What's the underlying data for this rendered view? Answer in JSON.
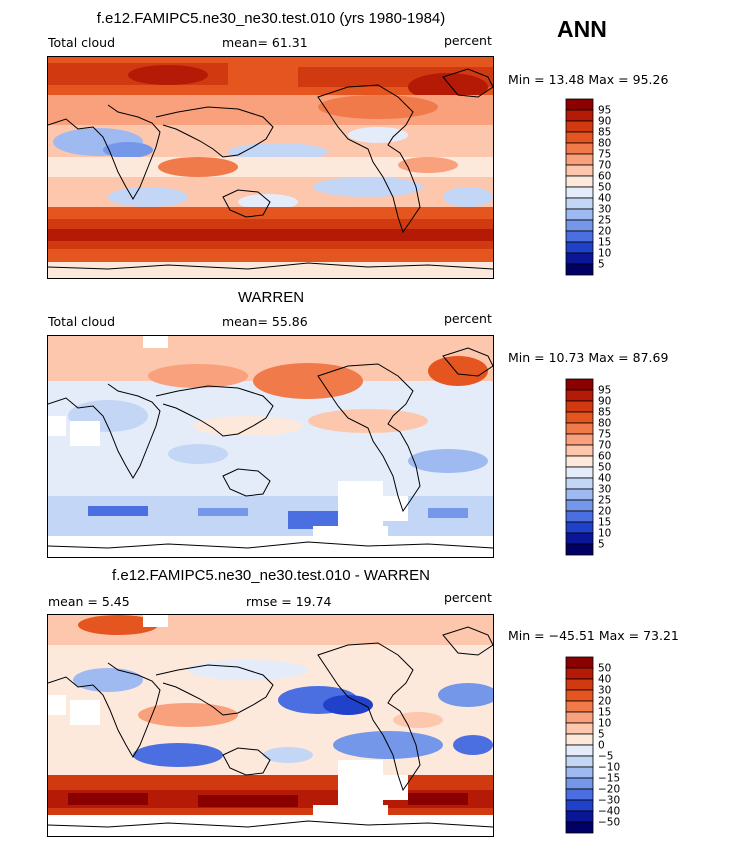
{
  "season": "ANN",
  "panels": [
    {
      "title": "f.e12.FAMIPC5.ne30_ne30.test.010 (yrs 1980-1984)",
      "left_label": "Total cloud",
      "mid_label": "mean=   61.31",
      "units": "percent",
      "minmax": "Min =   13.48  Max =   95.26",
      "colorbar_labels": [
        "95",
        "90",
        "85",
        "80",
        "75",
        "70",
        "60",
        "50",
        "40",
        "30",
        "25",
        "20",
        "15",
        "10",
        "5"
      ],
      "colors": [
        "#8b0000",
        "#b41a05",
        "#d13a10",
        "#e5551f",
        "#f07a4a",
        "#f9a07c",
        "#fdc7ad",
        "#fde8dc",
        "#e4ecfa",
        "#c4d6f5",
        "#9fbaf0",
        "#7497e9",
        "#4b6fe0",
        "#2041c9",
        "#0b1696",
        "#000066"
      ]
    },
    {
      "title": "WARREN",
      "left_label": "Total cloud",
      "mid_label": "mean=   55.86",
      "units": "percent",
      "minmax": "Min =   10.73  Max =   87.69",
      "colorbar_labels": [
        "95",
        "90",
        "85",
        "80",
        "75",
        "70",
        "60",
        "50",
        "40",
        "30",
        "25",
        "20",
        "15",
        "10",
        "5"
      ]
    },
    {
      "title": "f.e12.FAMIPC5.ne30_ne30.test.010 - WARREN",
      "left_label": "mean =    5.45",
      "mid_label": "rmse =   19.74",
      "units": "percent",
      "minmax": "Min =  −45.51  Max =   73.21",
      "colorbar_labels": [
        "50",
        "40",
        "30",
        "20",
        "15",
        "10",
        "5",
        "0",
        "−5",
        "−10",
        "−15",
        "−20",
        "−30",
        "−40",
        "−50"
      ]
    }
  ]
}
